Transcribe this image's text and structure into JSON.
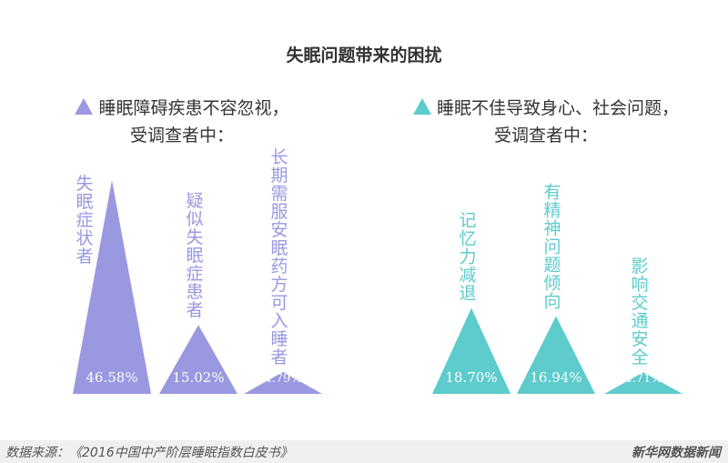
{
  "title": "失眠问题带来的困扰",
  "left_heading": {
    "line1": "睡眠障碍疾患不容忽视，",
    "line2": "受调查者中："
  },
  "right_heading": {
    "line1": "睡眠不佳导致身心、社会问题，",
    "line2": "受调查者中："
  },
  "footer": {
    "source": "数据来源：《2016中国中产阶层睡眠指数白皮书》",
    "brand": "新华网数据新闻"
  },
  "colors": {
    "purple": "#9998e0",
    "teal": "#5ecbcd"
  },
  "chart_data": [
    {
      "type": "bar",
      "categories": [
        "失眠症状者",
        "疑似失眠症患者",
        "长期需服安眠药方可入睡者"
      ],
      "values": [
        46.58,
        15.02,
        4.79
      ],
      "labels": [
        "46.58%",
        "15.02%",
        "4.79%"
      ],
      "unit": "%",
      "shape": "triangle",
      "color": "#9998e0"
    },
    {
      "type": "bar",
      "categories": [
        "记忆力减退",
        "有精神问题倾向",
        "影响交通安全"
      ],
      "values": [
        18.7,
        16.94,
        4.71
      ],
      "labels": [
        "18.70%",
        "16.94%",
        "4.71%"
      ],
      "unit": "%",
      "shape": "triangle",
      "color": "#5ecbcd"
    }
  ]
}
